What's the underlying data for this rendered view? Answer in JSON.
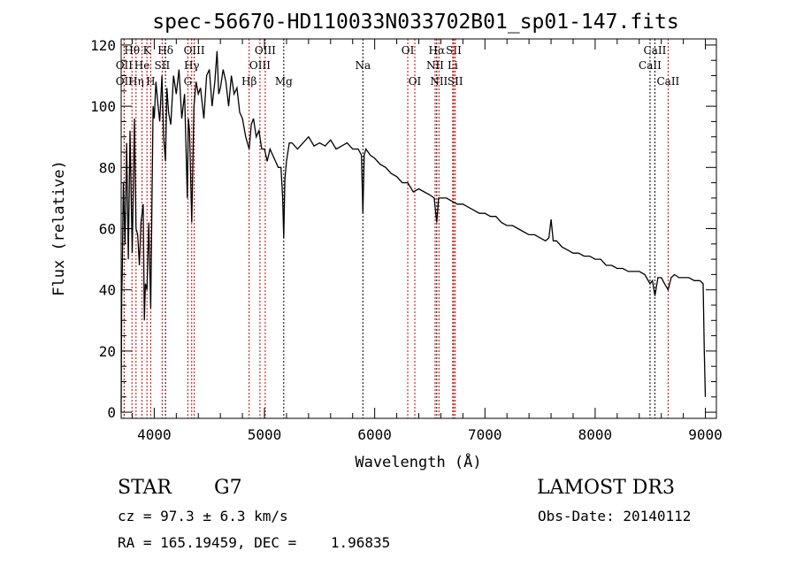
{
  "chart_data": {
    "type": "line",
    "title": "spec-56670-HD110033N033702B01_sp01-147.fits",
    "xlabel": "Wavelength (Å)",
    "ylabel": "Flux (relative)",
    "xlim": [
      3700,
      9100
    ],
    "ylim": [
      -2,
      122
    ],
    "xticks": [
      4000,
      5000,
      6000,
      7000,
      8000,
      9000
    ],
    "yticks": [
      0,
      20,
      40,
      60,
      80,
      100,
      120
    ],
    "grid": false,
    "series": [
      {
        "name": "spectrum",
        "x": [
          3700,
          3705,
          3710,
          3720,
          3735,
          3750,
          3765,
          3780,
          3800,
          3820,
          3835,
          3850,
          3865,
          3880,
          3900,
          3910,
          3920,
          3934,
          3950,
          3968,
          3990,
          4000,
          4015,
          4030,
          4050,
          4070,
          4085,
          4102,
          4115,
          4130,
          4150,
          4175,
          4200,
          4225,
          4250,
          4275,
          4300,
          4310,
          4320,
          4340,
          4360,
          4380,
          4400,
          4420,
          4450,
          4475,
          4500,
          4525,
          4550,
          4570,
          4585,
          4600,
          4625,
          4650,
          4675,
          4700,
          4725,
          4750,
          4775,
          4800,
          4830,
          4861,
          4880,
          4900,
          4925,
          4950,
          4975,
          5000,
          5025,
          5050,
          5075,
          5100,
          5125,
          5150,
          5165,
          5175,
          5185,
          5200,
          5225,
          5250,
          5300,
          5350,
          5400,
          5450,
          5500,
          5550,
          5600,
          5650,
          5700,
          5750,
          5800,
          5850,
          5880,
          5893,
          5905,
          5920,
          5960,
          6000,
          6050,
          6100,
          6150,
          6200,
          6250,
          6300,
          6350,
          6400,
          6450,
          6500,
          6540,
          6563,
          6580,
          6600,
          6650,
          6700,
          6750,
          6800,
          6850,
          6900,
          6950,
          7000,
          7050,
          7100,
          7150,
          7200,
          7250,
          7300,
          7350,
          7400,
          7450,
          7500,
          7550,
          7580,
          7600,
          7620,
          7650,
          7700,
          7750,
          7800,
          7850,
          7900,
          7950,
          8000,
          8050,
          8100,
          8150,
          8200,
          8250,
          8300,
          8350,
          8400,
          8450,
          8498,
          8520,
          8542,
          8570,
          8600,
          8630,
          8662,
          8690,
          8720,
          8760,
          8800,
          8850,
          8900,
          8950,
          8980,
          8990,
          9000
        ],
        "y": [
          0,
          38,
          45,
          75,
          55,
          88,
          50,
          92,
          52,
          96,
          60,
          58,
          48,
          62,
          68,
          30,
          42,
          40,
          62,
          34,
          100,
          96,
          108,
          102,
          95,
          110,
          90,
          82,
          106,
          98,
          94,
          110,
          104,
          112,
          96,
          104,
          70,
          96,
          92,
          62,
          100,
          108,
          104,
          106,
          96,
          110,
          112,
          100,
          108,
          118,
          104,
          106,
          112,
          108,
          100,
          110,
          104,
          106,
          98,
          96,
          90,
          86,
          94,
          96,
          90,
          92,
          86,
          86,
          82,
          86,
          84,
          82,
          80,
          80,
          70,
          57,
          76,
          82,
          88,
          88,
          86,
          88,
          90,
          87,
          88,
          87,
          89,
          86,
          87,
          88,
          86,
          86,
          84,
          65,
          84,
          86,
          84,
          83,
          81,
          80,
          78,
          77,
          75,
          75,
          72,
          73,
          72,
          71,
          70,
          62,
          70,
          70,
          70,
          69,
          68,
          68,
          67,
          66,
          65,
          65,
          64,
          64,
          62,
          61,
          61,
          60,
          59,
          58,
          58,
          57,
          56,
          57,
          63,
          56,
          56,
          54,
          53,
          52,
          52,
          51,
          51,
          50,
          50,
          48,
          48,
          47,
          47,
          46,
          46,
          46,
          45,
          42,
          43,
          38,
          44,
          44,
          42,
          40,
          44,
          45,
          44,
          44,
          44,
          43,
          43,
          42,
          20,
          5
        ]
      }
    ],
    "lines": [
      {
        "label": "OII",
        "wave": 3727,
        "row": 2,
        "color": "#cc0000"
      },
      {
        "label": "OII",
        "wave": 3727,
        "row": 3,
        "color": "#cc0000"
      },
      {
        "label": "Hθ",
        "wave": 3798,
        "row": 1,
        "color": "#cc0000"
      },
      {
        "label": "Hη",
        "wave": 3835,
        "row": 3,
        "color": "#cc0000"
      },
      {
        "label": "He",
        "wave": 3889,
        "row": 2,
        "color": "#cc0000"
      },
      {
        "label": "K",
        "wave": 3934,
        "row": 1,
        "color": "#cc0000"
      },
      {
        "label": "H",
        "wave": 3968,
        "row": 3,
        "color": "#cc0000"
      },
      {
        "label": "SII",
        "wave": 4072,
        "row": 2,
        "color": "#cc0000"
      },
      {
        "label": "Hδ",
        "wave": 4102,
        "row": 1,
        "color": "#000000"
      },
      {
        "label": "G",
        "wave": 4305,
        "row": 3,
        "color": "#cc0000"
      },
      {
        "label": "Hγ",
        "wave": 4340,
        "row": 2,
        "color": "#cc0000"
      },
      {
        "label": "OIII",
        "wave": 4363,
        "row": 1,
        "color": "#cc0000"
      },
      {
        "label": "Hβ",
        "wave": 4861,
        "row": 3,
        "color": "#cc0000"
      },
      {
        "label": "OIII",
        "wave": 4959,
        "row": 2,
        "color": "#cc0000"
      },
      {
        "label": "OIII",
        "wave": 5007,
        "row": 1,
        "color": "#cc0000"
      },
      {
        "label": "Mg",
        "wave": 5175,
        "row": 3,
        "color": "#000000"
      },
      {
        "label": "Na",
        "wave": 5893,
        "row": 2,
        "color": "#000000"
      },
      {
        "label": "OI",
        "wave": 6300,
        "row": 1,
        "color": "#cc0000"
      },
      {
        "label": "OI",
        "wave": 6364,
        "row": 3,
        "color": "#cc0000"
      },
      {
        "label": "NII",
        "wave": 6548,
        "row": 2,
        "color": "#cc0000"
      },
      {
        "label": "Hα",
        "wave": 6563,
        "row": 1,
        "color": "#000000"
      },
      {
        "label": "NII",
        "wave": 6583,
        "row": 3,
        "color": "#cc0000"
      },
      {
        "label": "Li",
        "wave": 6708,
        "row": 2,
        "color": "#cc0000"
      },
      {
        "label": "SII",
        "wave": 6717,
        "row": 1,
        "color": "#cc0000"
      },
      {
        "label": "SII",
        "wave": 6731,
        "row": 3,
        "color": "#cc0000"
      },
      {
        "label": "CaII",
        "wave": 8498,
        "row": 2,
        "color": "#000000"
      },
      {
        "label": "CaII",
        "wave": 8542,
        "row": 1,
        "color": "#000000"
      },
      {
        "label": "CaII",
        "wave": 8662,
        "row": 3,
        "color": "#cc0000"
      }
    ]
  },
  "info": {
    "object_class": "STAR",
    "subclass": "G7",
    "survey": "LAMOST DR3",
    "redshift": "cz = 97.3 ± 6.3 km/s",
    "obs_date": "Obs-Date: 20140112",
    "coords": "RA = 165.19459, DEC =    1.96835"
  }
}
